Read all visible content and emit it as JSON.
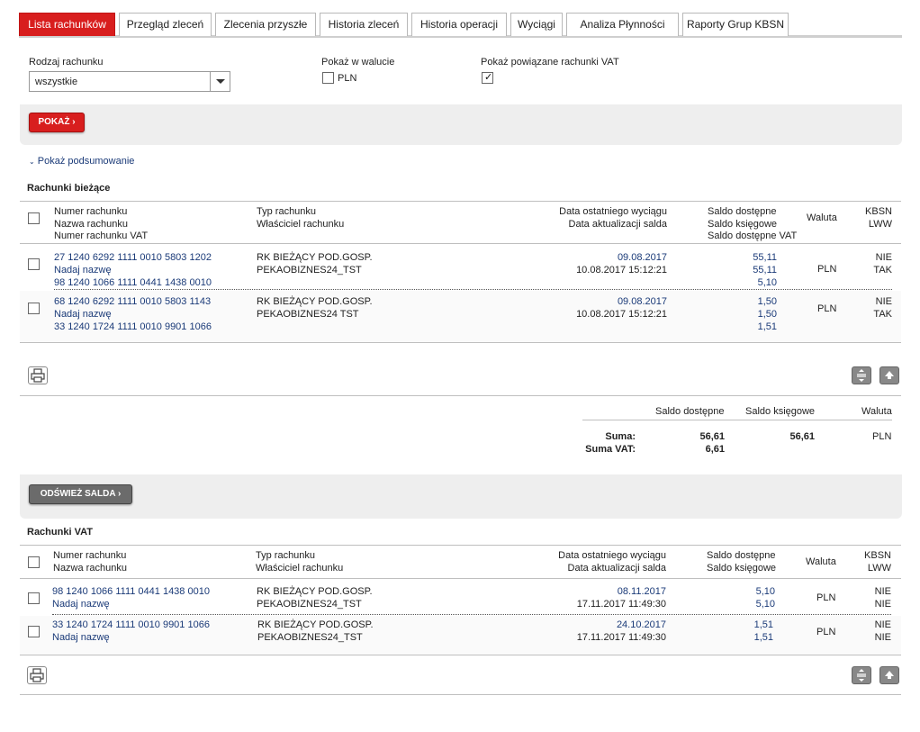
{
  "tabs": [
    {
      "label": "Lista rachunków",
      "active": true
    },
    {
      "label": "Przegląd zleceń",
      "active": false
    },
    {
      "label": "Zlecenia przyszłe",
      "active": false
    },
    {
      "label": "Historia zleceń",
      "active": false
    },
    {
      "label": "Historia operacji",
      "active": false
    },
    {
      "label": "Wyciągi",
      "active": false
    },
    {
      "label": "Analiza Płynności",
      "active": false
    },
    {
      "label": "Raporty Grup KBSN",
      "active": false
    }
  ],
  "filters": {
    "account_type_label": "Rodzaj rachunku",
    "account_type_value": "wszystkie",
    "currency_label": "Pokaż w walucie",
    "currency_option": "PLN",
    "currency_checked": false,
    "vat_label": "Pokaż powiązane rachunki VAT",
    "vat_checked": true,
    "show_button": "POKAŻ ›"
  },
  "summary_toggle": "Pokaż podsumowanie",
  "current_accounts": {
    "title": "Rachunki bieżące",
    "headers": {
      "number": [
        "Numer rachunku",
        "Nazwa rachunku",
        "Numer rachunku VAT"
      ],
      "type": [
        "Typ rachunku",
        "Właściciel rachunku"
      ],
      "date": [
        "Data ostatniego wyciągu",
        "Data aktualizacji salda"
      ],
      "balance": [
        "Saldo dostępne",
        "Saldo księgowe",
        "Saldo dostępne VAT"
      ],
      "currency": "Waluta",
      "kbsn": [
        "KBSN",
        "LWW"
      ]
    },
    "rows": [
      {
        "number": "27 1240 6292 1111 0010 5803 1202",
        "name": "Nadaj nazwę",
        "vat_number": "98 1240 1066 1111 0441 1438 0010",
        "type": "RK BIEŻĄCY POD.GOSP.",
        "owner": "PEKAOBIZNES24_TST",
        "statement_date": "09.08.2017",
        "update_date": "10.08.2017 15:12:21",
        "available": "55,11",
        "booked": "55,11",
        "available_vat": "5,10",
        "currency": "PLN",
        "kbsn": "NIE",
        "lww": "TAK"
      },
      {
        "number": "68 1240 6292 1111 0010 5803 1143",
        "name": "Nadaj nazwę",
        "vat_number": "33 1240 1724 1111 0010 9901 1066",
        "type": "RK BIEŻĄCY POD.GOSP.",
        "owner": "PEKAOBIZNES24  TST",
        "statement_date": "09.08.2017",
        "update_date": "10.08.2017 15:12:21",
        "available": "1,50",
        "booked": "1,50",
        "available_vat": "1,51",
        "currency": "PLN",
        "kbsn": "NIE",
        "lww": "TAK"
      }
    ]
  },
  "totals": {
    "col_available": "Saldo dostępne",
    "col_booked": "Saldo księgowe",
    "col_currency": "Waluta",
    "sum_label": "Suma:",
    "sum_vat_label": "Suma VAT:",
    "sum_available": "56,61",
    "sum_booked": "56,61",
    "sum_currency": "PLN",
    "sum_vat": "6,61"
  },
  "refresh_button": "ODŚWIEŻ SALDA ›",
  "vat_accounts": {
    "title": "Rachunki VAT",
    "headers": {
      "number": [
        "Numer rachunku",
        "Nazwa rachunku"
      ],
      "type": [
        "Typ rachunku",
        "Właściciel rachunku"
      ],
      "date": [
        "Data ostatniego wyciągu",
        "Data aktualizacji salda"
      ],
      "balance": [
        "Saldo dostępne",
        "Saldo księgowe"
      ],
      "currency": "Waluta",
      "kbsn": [
        "KBSN",
        "LWW"
      ]
    },
    "rows": [
      {
        "number": "98 1240 1066 1111 0441 1438 0010",
        "name": "Nadaj nazwę",
        "type": "RK BIEŻĄCY POD.GOSP.",
        "owner": "PEKAOBIZNES24_TST",
        "statement_date": "08.11.2017",
        "update_date": "17.11.2017 11:49:30",
        "available": "5,10",
        "booked": "5,10",
        "currency": "PLN",
        "kbsn": "NIE",
        "lww": "NIE"
      },
      {
        "number": "33 1240 1724 1111 0010 9901 1066",
        "name": "Nadaj nazwę",
        "type": "RK BIEŻĄCY POD.GOSP.",
        "owner": "PEKAOBIZNES24_TST",
        "statement_date": "24.10.2017",
        "update_date": "17.11.2017 11:49:30",
        "available": "1,51",
        "booked": "1,51",
        "currency": "PLN",
        "kbsn": "NIE",
        "lww": "NIE"
      }
    ]
  },
  "icons": {
    "print": "print-icon",
    "expand": "expand-rows-icon",
    "scroll_top": "scroll-top-icon"
  },
  "colors": {
    "accent": "#d81e1e",
    "link": "#1a3a78"
  }
}
